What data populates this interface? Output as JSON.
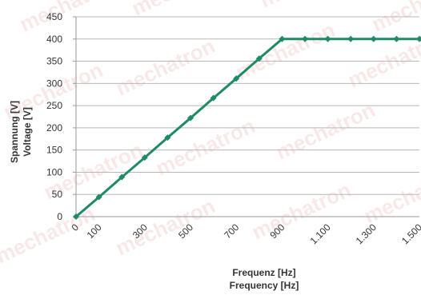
{
  "watermark_text": "mechatron",
  "chart_data": {
    "type": "line",
    "xlabel_lines": [
      "Frequenz [Hz]",
      "Frequency [Hz]"
    ],
    "ylabel_lines": [
      "Spannung [V]",
      "Voltage [V]"
    ],
    "xlim": [
      0,
      1500
    ],
    "ylim": [
      0,
      450
    ],
    "x_tick_values": [
      0,
      100,
      300,
      500,
      700,
      900,
      1100,
      1300,
      1500
    ],
    "x_tick_labels": [
      "0",
      "100",
      "300",
      "500",
      "700",
      "900",
      "1.100",
      "1.300",
      "1.500"
    ],
    "y_ticks": [
      0,
      50,
      100,
      150,
      200,
      250,
      300,
      350,
      400,
      450
    ],
    "grid": true,
    "series": [
      {
        "color": "#1f8a68",
        "x": [
          0,
          100,
          200,
          300,
          400,
          500,
          600,
          700,
          800,
          900,
          1000,
          1100,
          1200,
          1300,
          1400,
          1500
        ],
        "y": [
          0,
          44,
          89,
          133,
          178,
          222,
          267,
          311,
          356,
          400,
          400,
          400,
          400,
          400,
          400,
          400
        ]
      }
    ]
  }
}
